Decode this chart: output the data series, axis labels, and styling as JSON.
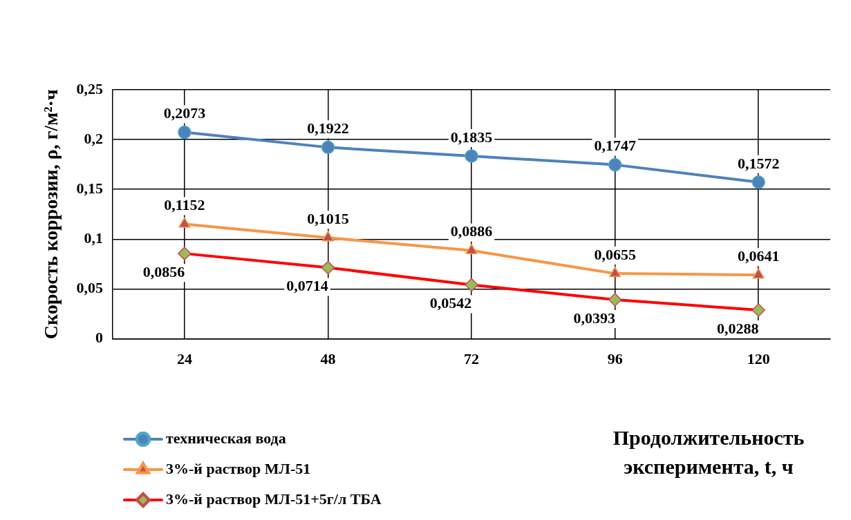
{
  "chart_data": {
    "type": "line",
    "categories": [
      "24",
      "48",
      "72",
      "96",
      "120"
    ],
    "ylabel": "Скорость коррозии, ρ, г/м²·ч",
    "xlabel": "Продолжительность эксперимента, t, ч",
    "ylim": [
      0,
      0.25
    ],
    "yticks": [
      {
        "value": 0,
        "label": "0"
      },
      {
        "value": 0.05,
        "label": "0,05"
      },
      {
        "value": 0.1,
        "label": "0,1"
      },
      {
        "value": 0.15,
        "label": "0,15"
      },
      {
        "value": 0.2,
        "label": "0,2"
      },
      {
        "value": 0.25,
        "label": "0,25"
      }
    ],
    "grid": true,
    "legend": "bottom left",
    "series": [
      {
        "name": "техническая вода",
        "color": "#4f81bd",
        "marker": "circle",
        "values": [
          0.2073,
          0.1922,
          0.1835,
          0.1747,
          0.1572
        ],
        "value_labels": [
          "0,2073",
          "0,1922",
          "0,1835",
          "0,1747",
          "0,1572"
        ]
      },
      {
        "name": "3%-й раствор МЛ-51",
        "color": "#f79646",
        "marker": "triangle",
        "values": [
          0.1152,
          0.1015,
          0.0886,
          0.0655,
          0.0641
        ],
        "value_labels": [
          "0,1152",
          "0,1015",
          "0,0886",
          "0,0655",
          "0,0641"
        ]
      },
      {
        "name": "3%-й раствор МЛ-51+5г/л ТБА",
        "color": "#ff0000",
        "marker": "diamond",
        "values": [
          0.0856,
          0.0714,
          0.0542,
          0.0393,
          0.0288
        ],
        "value_labels": [
          "0,0856",
          "0,0714",
          "0,0542",
          "0,0393",
          "0,0288"
        ]
      }
    ]
  }
}
